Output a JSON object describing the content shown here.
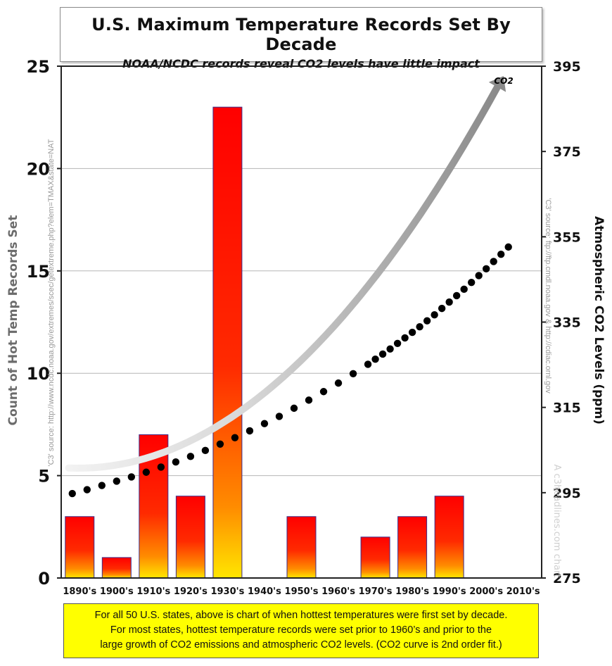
{
  "title": "U.S. Maximum Temperature Records Set By Decade",
  "subtitle": "NOAA/NCDC records reveal CO2 levels have little impact",
  "caption": [
    "For all 50 U.S. states, above is chart of when hottest temperatures were first set by decade.",
    "For most states, hottest temperature records were set prior to 1960’s and prior to the",
    "large growth of CO2 emissions and atmospheric CO2 levels. (CO2 curve is 2nd order fit.)"
  ],
  "source_left": "'C3' source: http://www.ncdc.noaa.gov/extremes/scec/getextreme.php?elem=TMAX&state=NAT",
  "source_right": "'C3' source: ftp://ftp.cmdl.noaa.gov & http://cdiac.ornl.gov",
  "watermark": "A c3headlines.com chart",
  "co2_label": "CO2",
  "colors": {
    "bar_top": "#ff0000",
    "bar_mid": "#ff6a00",
    "bar_bottom": "#ffe600",
    "bar_border": "#3b2b8a",
    "co2_dots": "#000000",
    "arrow": "#8a8a8a"
  },
  "chart_data": {
    "type": "bar",
    "categories": [
      "1890's",
      "1900's",
      "1910's",
      "1920's",
      "1930's",
      "1940's",
      "1950's",
      "1960's",
      "1970's",
      "1980's",
      "1990's",
      "2000's",
      "2010's"
    ],
    "series": [
      {
        "values": [
          3,
          1,
          7,
          4,
          23,
          0,
          3,
          0,
          2,
          3,
          4,
          0,
          0
        ]
      }
    ],
    "co2_series": {
      "name": "CO2",
      "type": "scatter",
      "x": [
        1893,
        1897,
        1901,
        1905,
        1909,
        1913,
        1917,
        1921,
        1925,
        1929,
        1933,
        1937,
        1941,
        1945,
        1949,
        1953,
        1957,
        1961,
        1965,
        1969,
        1973,
        1975,
        1977,
        1979,
        1981,
        1983,
        1985,
        1987,
        1989,
        1991,
        1993,
        1995,
        1997,
        1999,
        2001,
        2003,
        2005,
        2007,
        2009,
        2011
      ],
      "values": [
        294.8,
        295.7,
        296.7,
        297.7,
        298.7,
        299.8,
        301.0,
        302.2,
        303.5,
        304.9,
        306.4,
        307.9,
        309.5,
        311.2,
        312.9,
        314.8,
        316.7,
        318.7,
        320.7,
        322.9,
        325.1,
        326.3,
        327.5,
        328.7,
        330.0,
        331.3,
        332.6,
        333.9,
        335.3,
        336.7,
        338.2,
        339.7,
        341.2,
        342.7,
        344.3,
        345.9,
        347.5,
        349.2,
        350.9,
        352.6
      ]
    },
    "ylabel": "Count of Hot Temp Records Set",
    "y2label": "Atmospheric CO2 Levels (ppm)",
    "ylim": [
      0,
      25
    ],
    "yticks": [
      0,
      5,
      10,
      15,
      20,
      25
    ],
    "y2lim": [
      275,
      395
    ],
    "y2ticks": [
      275,
      295,
      315,
      335,
      355,
      375,
      395
    ],
    "grid": true
  }
}
